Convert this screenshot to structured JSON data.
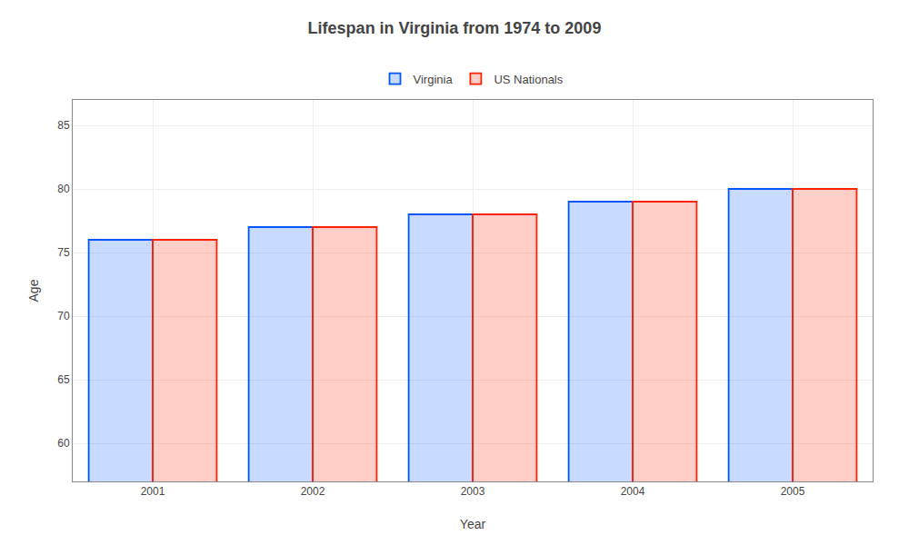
{
  "chart_data": {
    "type": "bar",
    "title": "Lifespan in Virginia from 1974 to 2009",
    "xlabel": "Year",
    "ylabel": "Age",
    "categories": [
      "2001",
      "2002",
      "2003",
      "2004",
      "2005"
    ],
    "series": [
      {
        "name": "Virginia",
        "color": "#0055ff",
        "values": [
          76,
          77,
          78,
          79,
          80
        ]
      },
      {
        "name": "US Nationals",
        "color": "#ff2200",
        "values": [
          76,
          77,
          78,
          79,
          80
        ]
      }
    ],
    "ylim": [
      57,
      87
    ],
    "yticks": [
      60,
      65,
      70,
      75,
      80,
      85
    ],
    "grid": true,
    "legend": "top"
  }
}
